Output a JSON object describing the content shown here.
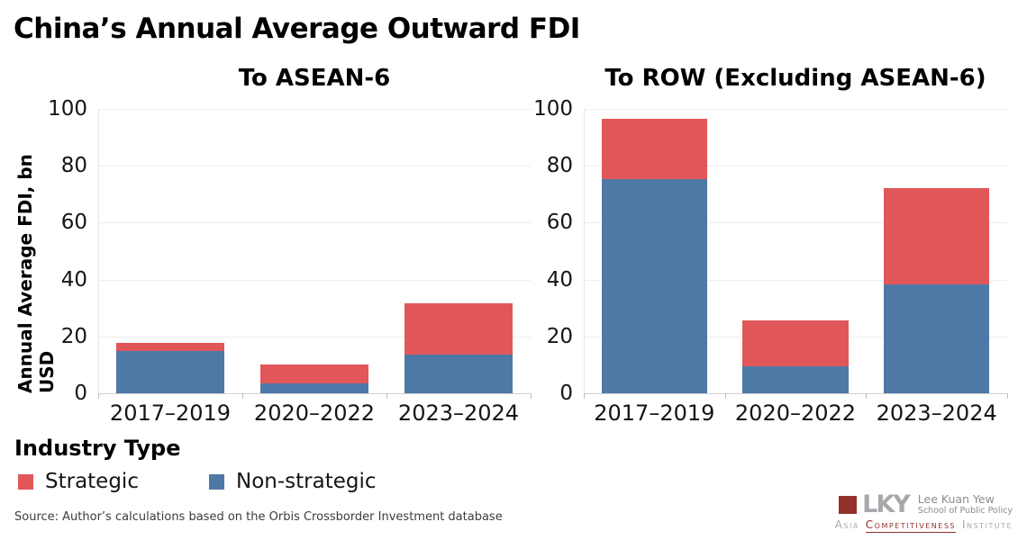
{
  "title": "China’s Annual Average Outward FDI",
  "y_axis_label": "Annual Average FDI, bn USD",
  "legend": {
    "title": "Industry Type",
    "items": [
      {
        "label": "Strategic",
        "color": "#e15759"
      },
      {
        "label": "Non-strategic",
        "color": "#4e79a7"
      }
    ]
  },
  "source": "Source: Author’s calculations based on the Orbis Crossborder Investment database",
  "colors": {
    "strategic": "#e15759",
    "non_strategic": "#4e79a7",
    "gridline": "#ededed",
    "logo_maroon": "#93312c",
    "logo_gray": "#a6a8ab"
  },
  "logo": {
    "monogram": "LKY",
    "school_line1": "Lee Kuan Yew",
    "school_line2": "School of Public Policy",
    "asia": "Asia",
    "competitiveness": "Competitiveness",
    "institute": "Institute"
  },
  "chart_data": [
    {
      "type": "bar",
      "stacked": true,
      "title": "To ASEAN-6",
      "categories": [
        "2017–2019",
        "2020–2022",
        "2023–2024"
      ],
      "series": [
        {
          "name": "Strategic",
          "color": "#e15759",
          "values": [
            2.6,
            6.6,
            17.9
          ]
        },
        {
          "name": "Non-strategic",
          "color": "#4e79a7",
          "values": [
            15.0,
            3.4,
            13.7
          ]
        }
      ],
      "totals": [
        17.6,
        10.0,
        31.6
      ],
      "xlabel": "",
      "ylabel": "Annual Average FDI, bn USD",
      "ylim": [
        0,
        100
      ],
      "yticks": [
        0,
        20,
        40,
        60,
        80,
        100
      ],
      "grid": true,
      "legend_position": "bottom-left"
    },
    {
      "type": "bar",
      "stacked": true,
      "title": "To ROW (Excluding ASEAN-6)",
      "categories": [
        "2017–2019",
        "2020–2022",
        "2023–2024"
      ],
      "series": [
        {
          "name": "Strategic",
          "color": "#e15759",
          "values": [
            21.1,
            16.0,
            33.9
          ]
        },
        {
          "name": "Non-strategic",
          "color": "#4e79a7",
          "values": [
            75.4,
            9.6,
            38.3
          ]
        }
      ],
      "totals": [
        96.5,
        25.6,
        72.2
      ],
      "xlabel": "",
      "ylabel": "Annual Average FDI, bn USD",
      "ylim": [
        0,
        100
      ],
      "yticks": [
        0,
        20,
        40,
        60,
        80,
        100
      ],
      "grid": true,
      "legend_position": "bottom-left"
    }
  ]
}
